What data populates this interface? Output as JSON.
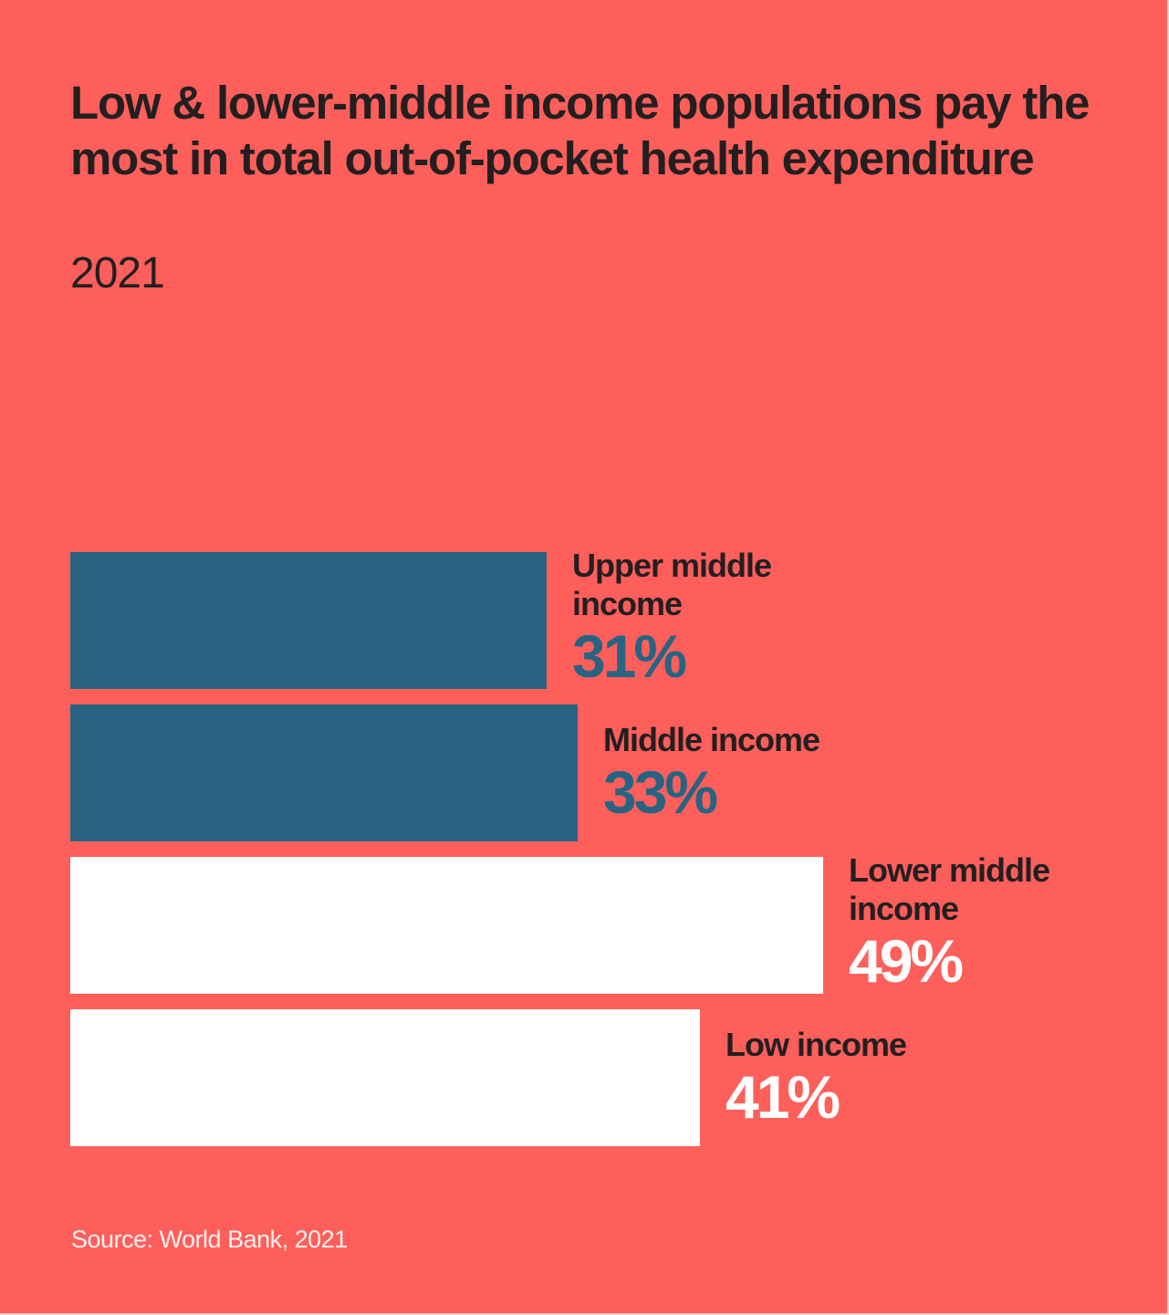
{
  "chart_data": {
    "type": "bar",
    "orientation": "horizontal",
    "title": "Low & lower-middle income populations pay the most in total out-of-pocket health expenditure",
    "subtitle": "2021",
    "categories": [
      "Upper middle income",
      "Middle income",
      "Lower middle income",
      "Low income"
    ],
    "values": [
      31,
      33,
      49,
      41
    ],
    "value_labels": [
      "31%",
      "33%",
      "49%",
      "41%"
    ],
    "units": "%",
    "colors": [
      "#286482",
      "#286482",
      "#ffffff",
      "#ffffff"
    ],
    "value_label_colors": [
      "#286482",
      "#286482",
      "#ffffff",
      "#ffffff"
    ],
    "xlim": [
      0,
      49
    ],
    "grid": false,
    "source": "Source: World Bank, 2021"
  },
  "background": "#ff5f5b"
}
